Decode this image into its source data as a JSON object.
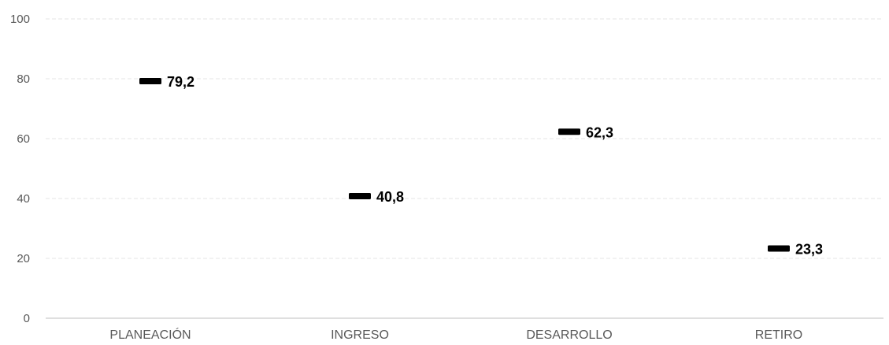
{
  "chart_data": {
    "type": "scatter",
    "marker": "dash",
    "categories": [
      "PLANEACIÓN",
      "INGRESO",
      "DESARROLLO",
      "RETIRO"
    ],
    "values": [
      79.2,
      40.8,
      62.3,
      23.3
    ],
    "value_labels": [
      "79,2",
      "40,8",
      "62,3",
      "23,3"
    ],
    "y_ticks": [
      "0",
      "20",
      "40",
      "60",
      "80",
      "100"
    ],
    "ylim": [
      0,
      100
    ],
    "grid": true,
    "legend": "none",
    "marker_color": "#000000",
    "grid_color": "#e6e6e6"
  }
}
